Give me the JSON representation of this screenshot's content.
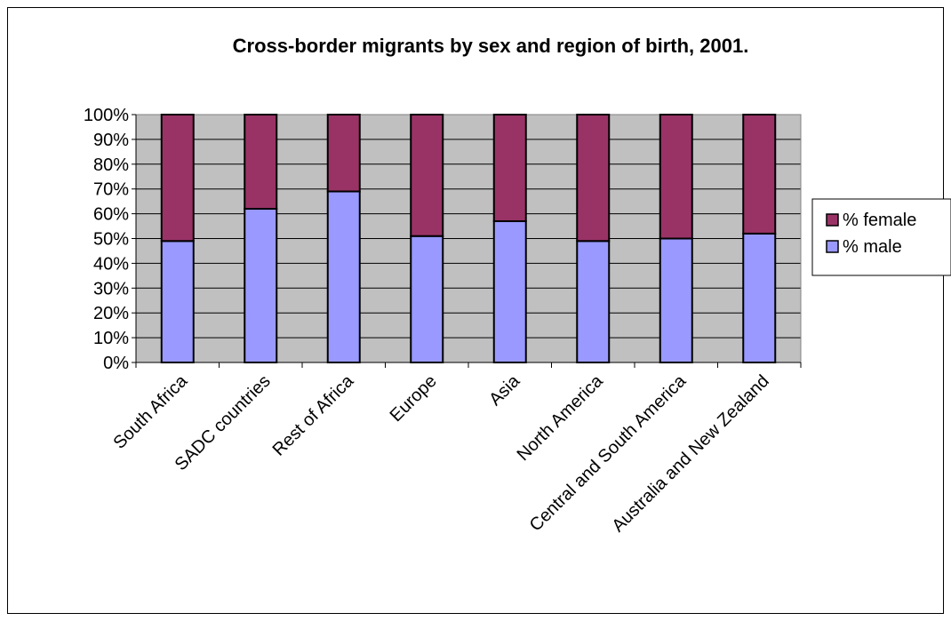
{
  "chart_data": {
    "type": "bar",
    "stacked": true,
    "normalized_percent": true,
    "title": "Cross-border migrants by sex and region of birth, 2001.",
    "xlabel": "",
    "ylabel": "",
    "ylim": [
      0,
      100
    ],
    "yticks": [
      "0%",
      "10%",
      "20%",
      "30%",
      "40%",
      "50%",
      "60%",
      "70%",
      "80%",
      "90%",
      "100%"
    ],
    "grid": "horizontal",
    "legend_position": "right",
    "categories": [
      "South Africa",
      "SADC countries",
      "Rest of Africa",
      "Europe",
      "Asia",
      "North America",
      "Central and South America",
      "Australia and New Zealand"
    ],
    "series": [
      {
        "name": "% male",
        "color": "#9999ff",
        "values": [
          49,
          62,
          69,
          51,
          57,
          49,
          50,
          52
        ]
      },
      {
        "name": "% female",
        "color": "#993366",
        "values": [
          51,
          38,
          31,
          49,
          43,
          51,
          50,
          48
        ]
      }
    ],
    "plot_background": "#c0c0c0"
  }
}
